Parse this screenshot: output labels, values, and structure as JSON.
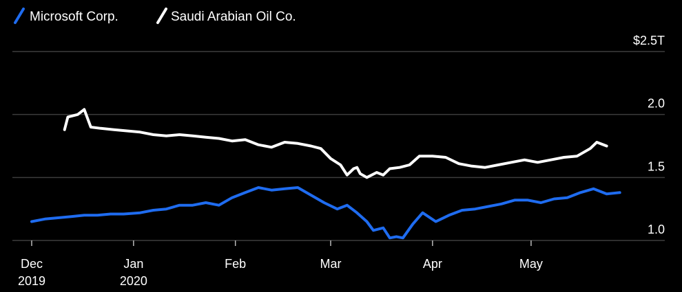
{
  "chart_data": {
    "type": "line",
    "title": "",
    "xlabel": "",
    "ylabel": "",
    "legend_position": "top-left",
    "grid": true,
    "y_axis_side": "right",
    "ylim": [
      1.0,
      2.5
    ],
    "y_ticks": [
      {
        "value": 2.5,
        "label": "$2.5T"
      },
      {
        "value": 2.0,
        "label": "2.0"
      },
      {
        "value": 1.5,
        "label": "1.5"
      },
      {
        "value": 1.0,
        "label": "1.0"
      }
    ],
    "xlim": [
      "2019-12-01",
      "2020-05-31"
    ],
    "x_ticks": [
      {
        "date": "2019-12-01",
        "label": "Dec",
        "sublabel": "2019"
      },
      {
        "date": "2020-01-01",
        "label": "Jan",
        "sublabel": "2020"
      },
      {
        "date": "2020-02-01",
        "label": "Feb",
        "sublabel": ""
      },
      {
        "date": "2020-03-01",
        "label": "Mar",
        "sublabel": ""
      },
      {
        "date": "2020-04-01",
        "label": "Apr",
        "sublabel": ""
      },
      {
        "date": "2020-05-01",
        "label": "May",
        "sublabel": ""
      }
    ],
    "series": [
      {
        "name": "Microsoft Corp.",
        "color": "#1f6cf0",
        "x": [
          "2019-12-01",
          "2019-12-05",
          "2019-12-09",
          "2019-12-13",
          "2019-12-17",
          "2019-12-21",
          "2019-12-25",
          "2019-12-29",
          "2020-01-03",
          "2020-01-07",
          "2020-01-11",
          "2020-01-15",
          "2020-01-19",
          "2020-01-23",
          "2020-01-27",
          "2020-01-31",
          "2020-02-04",
          "2020-02-08",
          "2020-02-12",
          "2020-02-16",
          "2020-02-20",
          "2020-02-24",
          "2020-02-28",
          "2020-03-03",
          "2020-03-06",
          "2020-03-09",
          "2020-03-12",
          "2020-03-14",
          "2020-03-17",
          "2020-03-19",
          "2020-03-21",
          "2020-03-23",
          "2020-03-26",
          "2020-03-29",
          "2020-04-02",
          "2020-04-06",
          "2020-04-10",
          "2020-04-14",
          "2020-04-18",
          "2020-04-22",
          "2020-04-26",
          "2020-04-30",
          "2020-05-04",
          "2020-05-08",
          "2020-05-12",
          "2020-05-16",
          "2020-05-20",
          "2020-05-24",
          "2020-05-28"
        ],
        "values": [
          1.15,
          1.17,
          1.18,
          1.19,
          1.2,
          1.2,
          1.21,
          1.21,
          1.22,
          1.24,
          1.25,
          1.28,
          1.28,
          1.3,
          1.28,
          1.34,
          1.38,
          1.42,
          1.4,
          1.41,
          1.42,
          1.36,
          1.3,
          1.25,
          1.28,
          1.22,
          1.15,
          1.08,
          1.1,
          1.02,
          1.03,
          1.02,
          1.13,
          1.22,
          1.15,
          1.2,
          1.24,
          1.25,
          1.27,
          1.29,
          1.32,
          1.32,
          1.3,
          1.33,
          1.34,
          1.38,
          1.41,
          1.37,
          1.38
        ]
      },
      {
        "name": "Saudi Arabian Oil Co.",
        "color": "#ffffff",
        "x": [
          "2019-12-11",
          "2019-12-12",
          "2019-12-15",
          "2019-12-17",
          "2019-12-19",
          "2019-12-22",
          "2019-12-26",
          "2019-12-30",
          "2020-01-03",
          "2020-01-07",
          "2020-01-11",
          "2020-01-15",
          "2020-01-19",
          "2020-01-23",
          "2020-01-27",
          "2020-01-31",
          "2020-02-04",
          "2020-02-08",
          "2020-02-12",
          "2020-02-16",
          "2020-02-20",
          "2020-02-24",
          "2020-02-27",
          "2020-03-01",
          "2020-03-04",
          "2020-03-06",
          "2020-03-08",
          "2020-03-09",
          "2020-03-10",
          "2020-03-12",
          "2020-03-15",
          "2020-03-17",
          "2020-03-19",
          "2020-03-22",
          "2020-03-25",
          "2020-03-28",
          "2020-04-01",
          "2020-04-05",
          "2020-04-09",
          "2020-04-13",
          "2020-04-17",
          "2020-04-21",
          "2020-04-25",
          "2020-04-29",
          "2020-05-03",
          "2020-05-07",
          "2020-05-11",
          "2020-05-15",
          "2020-05-19",
          "2020-05-21",
          "2020-05-24"
        ],
        "values": [
          1.88,
          1.98,
          2.0,
          2.04,
          1.9,
          1.89,
          1.88,
          1.87,
          1.86,
          1.84,
          1.83,
          1.84,
          1.83,
          1.82,
          1.81,
          1.79,
          1.8,
          1.76,
          1.74,
          1.78,
          1.77,
          1.75,
          1.73,
          1.65,
          1.6,
          1.52,
          1.57,
          1.58,
          1.53,
          1.5,
          1.54,
          1.52,
          1.57,
          1.58,
          1.6,
          1.67,
          1.67,
          1.66,
          1.61,
          1.59,
          1.58,
          1.6,
          1.62,
          1.64,
          1.62,
          1.64,
          1.66,
          1.67,
          1.73,
          1.78,
          1.75
        ]
      }
    ]
  }
}
